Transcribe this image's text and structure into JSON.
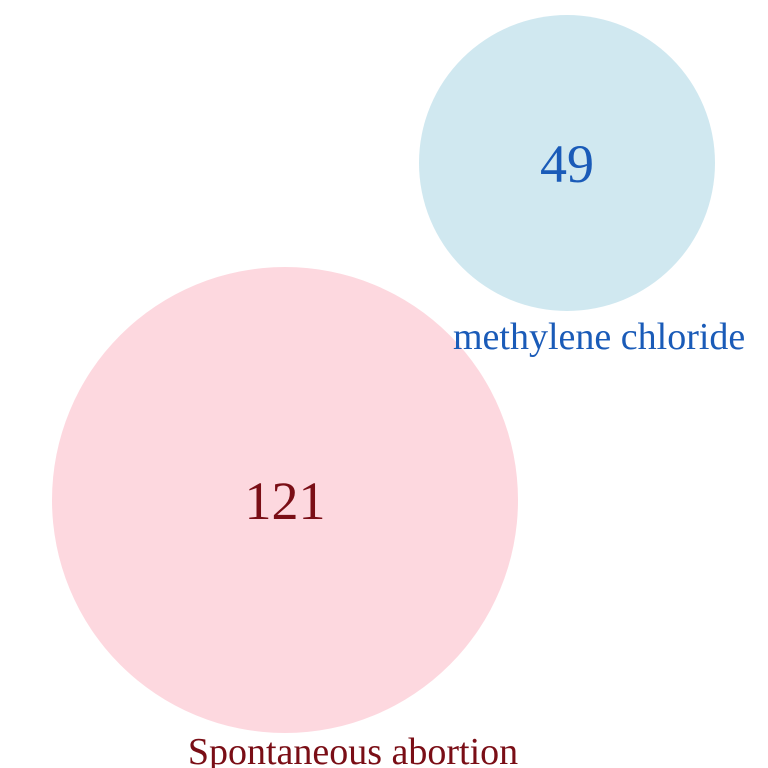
{
  "diagram": {
    "type": "venn",
    "sets": [
      {
        "name": "Spontaneous abortion",
        "count": "121",
        "fill_color": "#fdd8df",
        "text_color": "#7a0e16"
      },
      {
        "name": "methylene chloride",
        "count": "49",
        "fill_color": "#d0e8f0",
        "text_color": "#1a5bb8"
      }
    ]
  }
}
